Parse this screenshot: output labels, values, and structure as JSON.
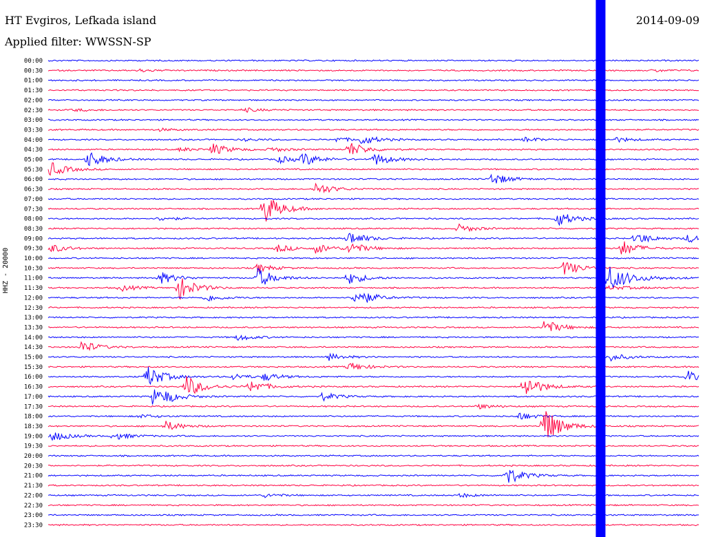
{
  "header": {
    "station": "HT Evgiros, Lefkada island",
    "filter": "Applied filter: WWSSN-SP",
    "date": "2014-09-09"
  },
  "colors": {
    "trace_a": "#0000ff",
    "trace_b": "#ff0040",
    "background": "#ffffff"
  },
  "chart_data": {
    "type": "line",
    "title": "",
    "ylabel": "HHZ - 20000",
    "time_labels": [
      "00:00",
      "00:30",
      "01:00",
      "01:30",
      "02:00",
      "02:30",
      "03:00",
      "03:30",
      "04:00",
      "04:30",
      "05:00",
      "05:30",
      "06:00",
      "06:30",
      "07:00",
      "07:30",
      "08:00",
      "08:30",
      "09:00",
      "09:30",
      "10:00",
      "10:30",
      "11:00",
      "11:30",
      "12:00",
      "12:30",
      "13:00",
      "13:30",
      "14:00",
      "14:30",
      "15:00",
      "15:30",
      "16:00",
      "16:30",
      "17:00",
      "17:30",
      "18:00",
      "18:30",
      "19:00",
      "19:30",
      "20:00",
      "20:30",
      "21:00",
      "21:30",
      "22:00",
      "22:30",
      "23:00",
      "23:30"
    ],
    "row_minutes": 30,
    "events": [
      {
        "row": 1,
        "t": 0.14,
        "amp": 0.3
      },
      {
        "row": 1,
        "t": 0.93,
        "amp": 0.3
      },
      {
        "row": 5,
        "t": 0.04,
        "amp": 0.3
      },
      {
        "row": 5,
        "t": 0.3,
        "amp": 0.5
      },
      {
        "row": 7,
        "t": 0.17,
        "amp": 0.3
      },
      {
        "row": 8,
        "t": 0.3,
        "amp": 0.3
      },
      {
        "row": 8,
        "t": 0.44,
        "amp": 0.6
      },
      {
        "row": 8,
        "t": 0.48,
        "amp": 1.2
      },
      {
        "row": 8,
        "t": 0.73,
        "amp": 0.6
      },
      {
        "row": 8,
        "t": 0.87,
        "amp": 0.6
      },
      {
        "row": 9,
        "t": 0.2,
        "amp": 0.5
      },
      {
        "row": 9,
        "t": 0.25,
        "amp": 1.5
      },
      {
        "row": 9,
        "t": 0.34,
        "amp": 0.6
      },
      {
        "row": 9,
        "t": 0.46,
        "amp": 2.0
      },
      {
        "row": 10,
        "t": 0.06,
        "amp": 2.2
      },
      {
        "row": 10,
        "t": 0.35,
        "amp": 1.0
      },
      {
        "row": 10,
        "t": 0.39,
        "amp": 1.6
      },
      {
        "row": 10,
        "t": 0.5,
        "amp": 1.6
      },
      {
        "row": 11,
        "t": 0.0,
        "amp": 2.0
      },
      {
        "row": 12,
        "t": 0.68,
        "amp": 1.6
      },
      {
        "row": 13,
        "t": 0.41,
        "amp": 1.6
      },
      {
        "row": 15,
        "t": 0.33,
        "amp": 4.0
      },
      {
        "row": 16,
        "t": 0.17,
        "amp": 0.5
      },
      {
        "row": 16,
        "t": 0.78,
        "amp": 2.0
      },
      {
        "row": 17,
        "t": 0.63,
        "amp": 1.0
      },
      {
        "row": 18,
        "t": 0.46,
        "amp": 1.8
      },
      {
        "row": 18,
        "t": 0.9,
        "amp": 1.6
      },
      {
        "row": 18,
        "t": 0.98,
        "amp": 1.0
      },
      {
        "row": 19,
        "t": 0.0,
        "amp": 1.2
      },
      {
        "row": 19,
        "t": 0.35,
        "amp": 1.0
      },
      {
        "row": 19,
        "t": 0.41,
        "amp": 1.2
      },
      {
        "row": 19,
        "t": 0.46,
        "amp": 1.6
      },
      {
        "row": 19,
        "t": 0.88,
        "amp": 2.0
      },
      {
        "row": 21,
        "t": 0.32,
        "amp": 1.0
      },
      {
        "row": 21,
        "t": 0.79,
        "amp": 2.0
      },
      {
        "row": 22,
        "t": 0.17,
        "amp": 1.6
      },
      {
        "row": 22,
        "t": 0.32,
        "amp": 2.6
      },
      {
        "row": 22,
        "t": 0.46,
        "amp": 1.6
      },
      {
        "row": 22,
        "t": 0.86,
        "amp": 2.2
      },
      {
        "row": 23,
        "t": 0.11,
        "amp": 0.8
      },
      {
        "row": 23,
        "t": 0.2,
        "amp": 3.0
      },
      {
        "row": 24,
        "t": 0.24,
        "amp": 1.0
      },
      {
        "row": 24,
        "t": 0.47,
        "amp": 2.6
      },
      {
        "row": 27,
        "t": 0.76,
        "amp": 2.0
      },
      {
        "row": 28,
        "t": 0.29,
        "amp": 0.8
      },
      {
        "row": 29,
        "t": 0.05,
        "amp": 1.6
      },
      {
        "row": 30,
        "t": 0.43,
        "amp": 0.8
      },
      {
        "row": 30,
        "t": 0.86,
        "amp": 1.0
      },
      {
        "row": 31,
        "t": 0.46,
        "amp": 1.2
      },
      {
        "row": 32,
        "t": 0.15,
        "amp": 3.0
      },
      {
        "row": 32,
        "t": 0.28,
        "amp": 0.8
      },
      {
        "row": 32,
        "t": 0.33,
        "amp": 1.0
      },
      {
        "row": 32,
        "t": 0.98,
        "amp": 1.6
      },
      {
        "row": 33,
        "t": 0.21,
        "amp": 3.0
      },
      {
        "row": 33,
        "t": 0.31,
        "amp": 1.6
      },
      {
        "row": 33,
        "t": 0.73,
        "amp": 3.0
      },
      {
        "row": 34,
        "t": 0.16,
        "amp": 2.0
      },
      {
        "row": 34,
        "t": 0.18,
        "amp": 0.8
      },
      {
        "row": 34,
        "t": 0.42,
        "amp": 1.0
      },
      {
        "row": 35,
        "t": 0.66,
        "amp": 0.6
      },
      {
        "row": 36,
        "t": 0.14,
        "amp": 0.5
      },
      {
        "row": 36,
        "t": 0.72,
        "amp": 1.0
      },
      {
        "row": 37,
        "t": 0.18,
        "amp": 1.2
      },
      {
        "row": 37,
        "t": 0.76,
        "amp": 5.0
      },
      {
        "row": 38,
        "t": 0.0,
        "amp": 1.6
      },
      {
        "row": 38,
        "t": 0.1,
        "amp": 1.0
      },
      {
        "row": 42,
        "t": 0.7,
        "amp": 2.6
      },
      {
        "row": 44,
        "t": 0.33,
        "amp": 0.5
      },
      {
        "row": 44,
        "t": 0.63,
        "amp": 0.5
      }
    ],
    "saturated_band_t": 0.845,
    "aftershock_row": 22
  }
}
